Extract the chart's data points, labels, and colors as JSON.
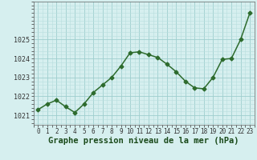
{
  "x": [
    0,
    1,
    2,
    3,
    4,
    5,
    6,
    7,
    8,
    9,
    10,
    11,
    12,
    13,
    14,
    15,
    16,
    17,
    18,
    19,
    20,
    21,
    22,
    23
  ],
  "y": [
    1021.3,
    1021.6,
    1021.8,
    1021.45,
    1021.15,
    1021.6,
    1022.2,
    1022.6,
    1023.0,
    1023.6,
    1024.3,
    1024.35,
    1024.2,
    1024.05,
    1023.7,
    1023.3,
    1022.8,
    1022.45,
    1022.4,
    1023.0,
    1023.95,
    1024.0,
    1025.0,
    1026.4
  ],
  "line_color": "#2d6b2d",
  "marker": "D",
  "marker_size": 2.5,
  "bg_color": "#d6efef",
  "xlabel": "Graphe pression niveau de la mer (hPa)",
  "xlabel_fontsize": 7.5,
  "yticks": [
    1021,
    1022,
    1023,
    1024,
    1025
  ],
  "ylim": [
    1020.5,
    1027.0
  ],
  "xlim": [
    -0.5,
    23.5
  ],
  "xtick_fontsize": 5.5,
  "ytick_fontsize": 6,
  "linewidth": 1.1
}
